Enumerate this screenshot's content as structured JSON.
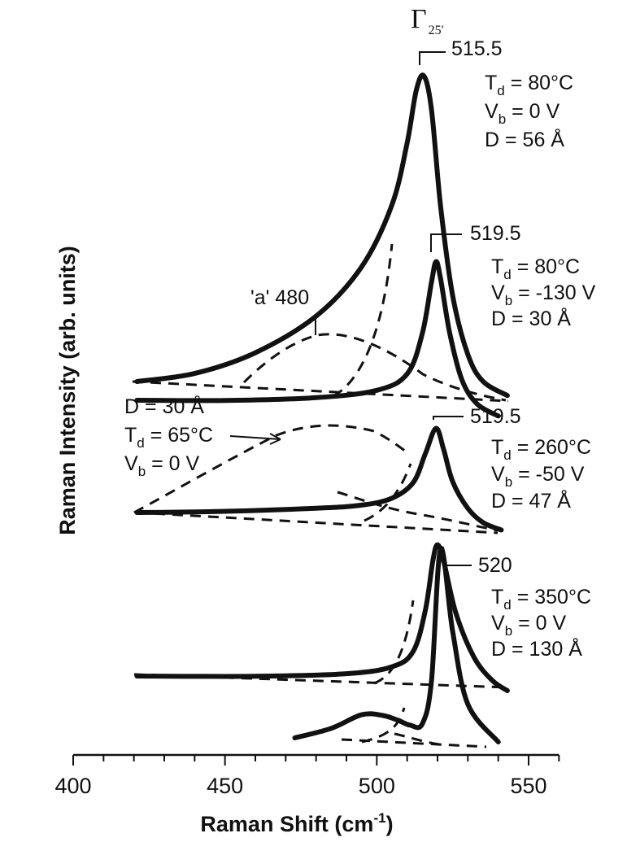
{
  "chart_data": {
    "type": "line",
    "xlabel": "Raman Shift (cm",
    "xlabel_sup": "-1",
    "xlabel_close": ")",
    "ylabel": "Raman Intensity (arb. units)",
    "xlim": [
      400,
      560
    ],
    "xticks": [
      400,
      450,
      500,
      550
    ],
    "grid": false,
    "top_label": {
      "main": "Γ",
      "sub": "25'"
    },
    "spectra": [
      {
        "peak": "515.5",
        "params": [
          {
            "main": "T",
            "sub": "d",
            "tail": " = 80°C"
          },
          {
            "main": "V",
            "sub": "b",
            "tail": " = 0 V"
          },
          {
            "main": "D = 56 Å"
          }
        ],
        "extra_label": "'a'  480",
        "x": [
          421,
          440,
          460,
          480,
          495,
          505,
          510,
          513,
          515.5,
          518,
          521,
          525,
          530,
          535,
          543
        ],
        "y": [
          0.0,
          0.03,
          0.1,
          0.22,
          0.38,
          0.58,
          0.78,
          0.95,
          1.0,
          0.9,
          0.6,
          0.32,
          0.14,
          0.06,
          0.02
        ]
      },
      {
        "peak": "519.5",
        "params": [
          {
            "main": "T",
            "sub": "d",
            "tail": " = 80°C"
          },
          {
            "main": "V",
            "sub": "b",
            "tail": " = -130 V"
          },
          {
            "main": "D = 30 Å"
          }
        ],
        "x": [
          421,
          450,
          480,
          500,
          510,
          515,
          518,
          519.5,
          521,
          524,
          528,
          533,
          540
        ],
        "y": [
          0.0,
          0.01,
          0.04,
          0.1,
          0.22,
          0.5,
          0.85,
          1.0,
          0.9,
          0.55,
          0.25,
          0.1,
          0.03
        ]
      },
      {
        "peak": "519.5",
        "params": [
          {
            "main": "T",
            "sub": "d",
            "tail": " = 260°C"
          },
          {
            "main": "V",
            "sub": "b",
            "tail": " = -50 V"
          },
          {
            "main": "D = 47 Å"
          }
        ],
        "annotation": [
          {
            "main": "D = 30 Å"
          },
          {
            "main": "T",
            "sub": "d",
            "tail": " = 65°C"
          },
          {
            "main": "V",
            "sub": "b",
            "tail": " = 0 V"
          }
        ],
        "x": [
          421,
          450,
          480,
          495,
          505,
          512,
          516,
          519.5,
          522,
          525,
          530,
          535,
          541
        ],
        "y": [
          0.0,
          0.03,
          0.08,
          0.13,
          0.22,
          0.4,
          0.72,
          1.0,
          0.8,
          0.48,
          0.22,
          0.09,
          0.03
        ]
      },
      {
        "peak": "520",
        "params": [
          {
            "main": "T",
            "sub": "d",
            "tail": " = 350°C"
          },
          {
            "main": "V",
            "sub": "b",
            "tail": " = 0 V"
          },
          {
            "main": "D = 130 Å"
          }
        ],
        "x": [
          421,
          460,
          490,
          505,
          512,
          516,
          518.5,
          520,
          522,
          526,
          532,
          538,
          543
        ],
        "y": [
          0.0,
          0.01,
          0.04,
          0.1,
          0.22,
          0.52,
          0.88,
          1.0,
          0.9,
          0.55,
          0.25,
          0.1,
          0.04
        ]
      },
      {
        "x": [
          473,
          485,
          495,
          502,
          507,
          511,
          515,
          518,
          521,
          525,
          530,
          540
        ],
        "y": [
          0.0,
          0.05,
          0.12,
          0.12,
          0.1,
          0.08,
          0.09,
          0.3,
          0.95,
          0.55,
          0.2,
          0.02
        ]
      }
    ]
  }
}
